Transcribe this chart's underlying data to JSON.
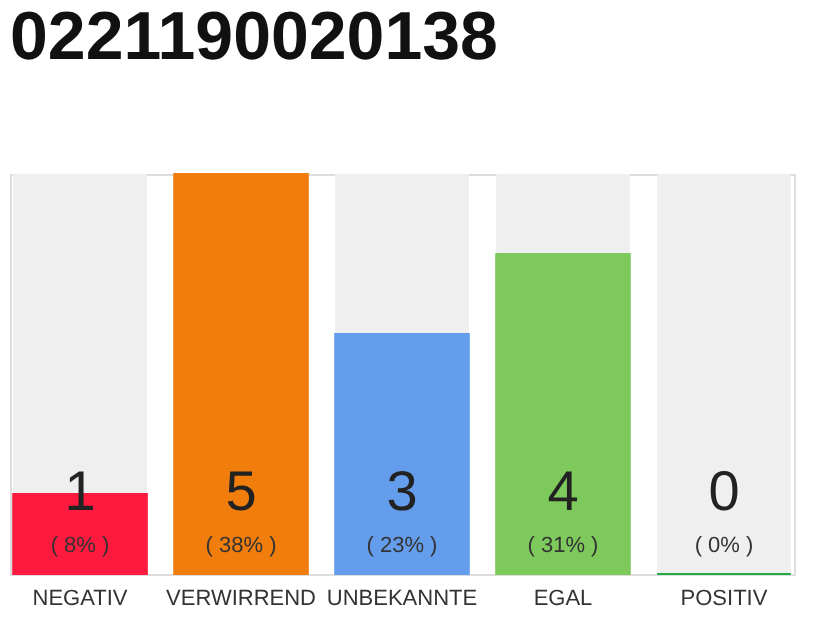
{
  "chart_data": {
    "type": "bar",
    "title": "0221190020138",
    "categories": [
      "NEGATIV",
      "VERWIRREND",
      "UNBEKANNTE",
      "EGAL",
      "POSITIV"
    ],
    "values": [
      1,
      5,
      3,
      4,
      0
    ],
    "colors": [
      "#fe1a3e",
      "#f07d0c",
      "#659ded",
      "#7ec95b",
      "#22aa44"
    ],
    "ylim": [
      0,
      5
    ],
    "data_labels": true,
    "annotations": [
      "( 8% )",
      "( 38% )",
      "( 23% )",
      "( 31% )",
      "( 0% )"
    ]
  }
}
